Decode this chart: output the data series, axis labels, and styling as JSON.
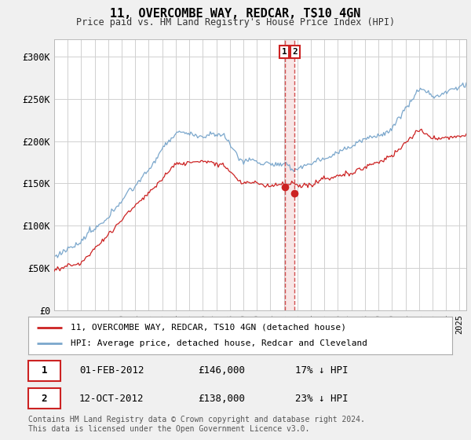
{
  "title": "11, OVERCOMBE WAY, REDCAR, TS10 4GN",
  "subtitle": "Price paid vs. HM Land Registry's House Price Index (HPI)",
  "ylim": [
    0,
    320000
  ],
  "yticks": [
    0,
    50000,
    100000,
    150000,
    200000,
    250000,
    300000
  ],
  "ytick_labels": [
    "£0",
    "£50K",
    "£100K",
    "£150K",
    "£200K",
    "£250K",
    "£300K"
  ],
  "hpi_color": "#7ba7cc",
  "price_color": "#cc2222",
  "dashed_color": "#cc3333",
  "background_color": "#f0f0f0",
  "plot_bg_color": "#ffffff",
  "legend_entry1": "11, OVERCOMBE WAY, REDCAR, TS10 4GN (detached house)",
  "legend_entry2": "HPI: Average price, detached house, Redcar and Cleveland",
  "annotation1_label": "1",
  "annotation1_date": "01-FEB-2012",
  "annotation1_price": "£146,000",
  "annotation1_note": "17% ↓ HPI",
  "annotation2_label": "2",
  "annotation2_date": "12-OCT-2012",
  "annotation2_price": "£138,000",
  "annotation2_note": "23% ↓ HPI",
  "footer": "Contains HM Land Registry data © Crown copyright and database right 2024.\nThis data is licensed under the Open Government Licence v3.0.",
  "sale1_x": 2012.083,
  "sale1_y": 146000,
  "sale2_x": 2012.79,
  "sale2_y": 138000,
  "xmin": 1995,
  "xmax": 2025.5
}
